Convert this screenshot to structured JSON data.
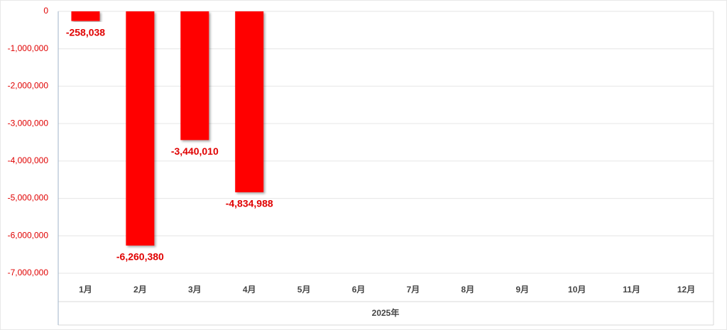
{
  "chart_data": {
    "type": "bar",
    "categories": [
      "1月",
      "2月",
      "3月",
      "4月",
      "5月",
      "6月",
      "7月",
      "8月",
      "9月",
      "10月",
      "11月",
      "12月"
    ],
    "values": [
      -258038,
      -6260380,
      -3440010,
      -4834988,
      null,
      null,
      null,
      null,
      null,
      null,
      null,
      null
    ],
    "value_labels": [
      "-258,038",
      "-6,260,380",
      "-3,440,010",
      "-4,834,988",
      null,
      null,
      null,
      null,
      null,
      null,
      null,
      null
    ],
    "group_label": "2025年",
    "color": "#ff0000",
    "ylim": [
      -7000000,
      0
    ],
    "yticks": [
      0,
      {
        "value": -1000000,
        "label": "-1,000,000"
      },
      {
        "value": -2000000,
        "label": "-2,000,000"
      },
      {
        "value": -3000000,
        "label": "-3,000,000"
      },
      {
        "value": -4000000,
        "label": "-4,000,000"
      },
      {
        "value": -5000000,
        "label": "-5,000,000"
      },
      {
        "value": -6000000,
        "label": "-6,000,000"
      },
      {
        "value": -7000000,
        "label": "-7,000,000"
      }
    ],
    "grid": true
  }
}
